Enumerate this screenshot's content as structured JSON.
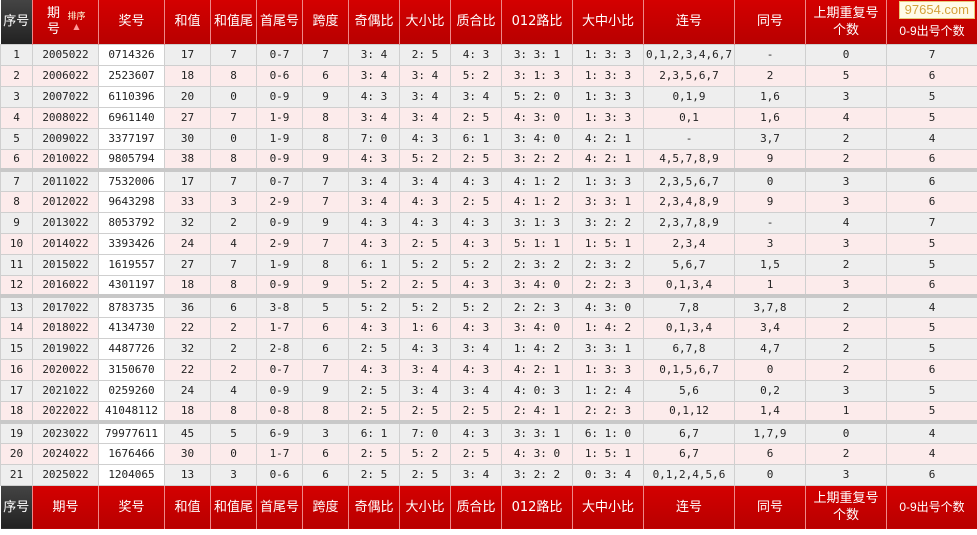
{
  "headers": [
    "序号",
    "期号",
    "奖号",
    "和值",
    "和值尾",
    "首尾号",
    "跨度",
    "奇偶比",
    "大小比",
    "质合比",
    "012路比",
    "大中小比",
    "连号",
    "同号",
    "上期重复号个数",
    "0-9出号个数"
  ],
  "sort_label": "排序",
  "watermark": "97654.com",
  "colors": {
    "header_red": "#c80000",
    "header_dark": "#333333",
    "row_odd": "#eeeeee",
    "row_even": "#fcebeb"
  },
  "rows": [
    [
      "1",
      "2005022",
      "0714326",
      "17",
      "7",
      "0-7",
      "7",
      "3: 4",
      "2: 5",
      "4: 3",
      "3: 3: 1",
      "1: 3: 3",
      "0,1,2,3,4,6,7",
      "-",
      "0",
      "7"
    ],
    [
      "2",
      "2006022",
      "2523607",
      "18",
      "8",
      "0-6",
      "6",
      "3: 4",
      "3: 4",
      "5: 2",
      "3: 1: 3",
      "1: 3: 3",
      "2,3,5,6,7",
      "2",
      "5",
      "6"
    ],
    [
      "3",
      "2007022",
      "6110396",
      "20",
      "0",
      "0-9",
      "9",
      "4: 3",
      "3: 4",
      "3: 4",
      "5: 2: 0",
      "1: 3: 3",
      "0,1,9",
      "1,6",
      "3",
      "5"
    ],
    [
      "4",
      "2008022",
      "6961140",
      "27",
      "7",
      "1-9",
      "8",
      "3: 4",
      "3: 4",
      "2: 5",
      "4: 3: 0",
      "1: 3: 3",
      "0,1",
      "1,6",
      "4",
      "5"
    ],
    [
      "5",
      "2009022",
      "3377197",
      "30",
      "0",
      "1-9",
      "8",
      "7: 0",
      "4: 3",
      "6: 1",
      "3: 4: 0",
      "4: 2: 1",
      "-",
      "3,7",
      "2",
      "4"
    ],
    [
      "6",
      "2010022",
      "9805794",
      "38",
      "8",
      "0-9",
      "9",
      "4: 3",
      "5: 2",
      "2: 5",
      "3: 2: 2",
      "4: 2: 1",
      "4,5,7,8,9",
      "9",
      "2",
      "6"
    ],
    [
      "7",
      "2011022",
      "7532006",
      "17",
      "7",
      "0-7",
      "7",
      "3: 4",
      "3: 4",
      "4: 3",
      "4: 1: 2",
      "1: 3: 3",
      "2,3,5,6,7",
      "0",
      "3",
      "6"
    ],
    [
      "8",
      "2012022",
      "9643298",
      "33",
      "3",
      "2-9",
      "7",
      "3: 4",
      "4: 3",
      "2: 5",
      "4: 1: 2",
      "3: 3: 1",
      "2,3,4,8,9",
      "9",
      "3",
      "6"
    ],
    [
      "9",
      "2013022",
      "8053792",
      "32",
      "2",
      "0-9",
      "9",
      "4: 3",
      "4: 3",
      "4: 3",
      "3: 1: 3",
      "3: 2: 2",
      "2,3,7,8,9",
      "-",
      "4",
      "7"
    ],
    [
      "10",
      "2014022",
      "3393426",
      "24",
      "4",
      "2-9",
      "7",
      "4: 3",
      "2: 5",
      "4: 3",
      "5: 1: 1",
      "1: 5: 1",
      "2,3,4",
      "3",
      "3",
      "5"
    ],
    [
      "11",
      "2015022",
      "1619557",
      "27",
      "7",
      "1-9",
      "8",
      "6: 1",
      "5: 2",
      "5: 2",
      "2: 3: 2",
      "2: 3: 2",
      "5,6,7",
      "1,5",
      "2",
      "5"
    ],
    [
      "12",
      "2016022",
      "4301197",
      "18",
      "8",
      "0-9",
      "9",
      "5: 2",
      "2: 5",
      "4: 3",
      "3: 4: 0",
      "2: 2: 3",
      "0,1,3,4",
      "1",
      "3",
      "6"
    ],
    [
      "13",
      "2017022",
      "8783735",
      "36",
      "6",
      "3-8",
      "5",
      "5: 2",
      "5: 2",
      "5: 2",
      "2: 2: 3",
      "4: 3: 0",
      "7,8",
      "3,7,8",
      "2",
      "4"
    ],
    [
      "14",
      "2018022",
      "4134730",
      "22",
      "2",
      "1-7",
      "6",
      "4: 3",
      "1: 6",
      "4: 3",
      "3: 4: 0",
      "1: 4: 2",
      "0,1,3,4",
      "3,4",
      "2",
      "5"
    ],
    [
      "15",
      "2019022",
      "4487726",
      "32",
      "2",
      "2-8",
      "6",
      "2: 5",
      "4: 3",
      "3: 4",
      "1: 4: 2",
      "3: 3: 1",
      "6,7,8",
      "4,7",
      "2",
      "5"
    ],
    [
      "16",
      "2020022",
      "3150670",
      "22",
      "2",
      "0-7",
      "7",
      "4: 3",
      "3: 4",
      "4: 3",
      "4: 2: 1",
      "1: 3: 3",
      "0,1,5,6,7",
      "0",
      "2",
      "6"
    ],
    [
      "17",
      "2021022",
      "0259260",
      "24",
      "4",
      "0-9",
      "9",
      "2: 5",
      "3: 4",
      "3: 4",
      "4: 0: 3",
      "1: 2: 4",
      "5,6",
      "0,2",
      "3",
      "5"
    ],
    [
      "18",
      "2022022",
      "41048112",
      "18",
      "8",
      "0-8",
      "8",
      "2: 5",
      "2: 5",
      "2: 5",
      "2: 4: 1",
      "2: 2: 3",
      "0,1,12",
      "1,4",
      "1",
      "5"
    ],
    [
      "19",
      "2023022",
      "79977611",
      "45",
      "5",
      "6-9",
      "3",
      "6: 1",
      "7: 0",
      "4: 3",
      "3: 3: 1",
      "6: 1: 0",
      "6,7",
      "1,7,9",
      "0",
      "4"
    ],
    [
      "20",
      "2024022",
      "1676466",
      "30",
      "0",
      "1-7",
      "6",
      "2: 5",
      "5: 2",
      "2: 5",
      "4: 3: 0",
      "1: 5: 1",
      "6,7",
      "6",
      "2",
      "4"
    ],
    [
      "21",
      "2025022",
      "1204065",
      "13",
      "3",
      "0-6",
      "6",
      "2: 5",
      "2: 5",
      "3: 4",
      "3: 2: 2",
      "0: 3: 4",
      "0,1,2,4,5,6",
      "0",
      "3",
      "6"
    ]
  ]
}
